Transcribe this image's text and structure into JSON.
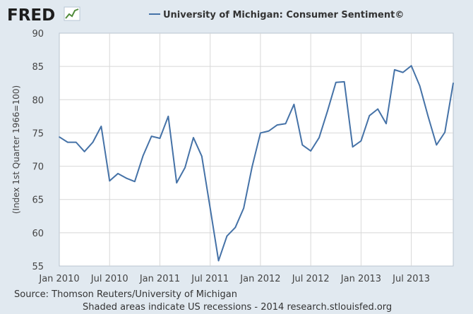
{
  "header": {
    "logo_text": "FRED",
    "legend_label": "University of Michigan: Consumer Sentiment©"
  },
  "colors": {
    "series": "#4572a7",
    "grid": "#d8d8d8",
    "plot_bg": "#ffffff",
    "page_bg": "#e1e9f0"
  },
  "chart_data": {
    "type": "line",
    "title": "",
    "xlabel": "",
    "ylabel": "(Index 1st Quarter 1966=100)",
    "ylim": [
      55,
      90
    ],
    "yticks": [
      "55",
      "60",
      "65",
      "70",
      "75",
      "80",
      "85",
      "90"
    ],
    "xticks": [
      {
        "label": "Jan 2010",
        "month_index": 0
      },
      {
        "label": "Jul 2010",
        "month_index": 6
      },
      {
        "label": "Jan 2011",
        "month_index": 12
      },
      {
        "label": "Jul 2011",
        "month_index": 18
      },
      {
        "label": "Jan 2012",
        "month_index": 24
      },
      {
        "label": "Jul 2012",
        "month_index": 30
      },
      {
        "label": "Jan 2013",
        "month_index": 36
      },
      {
        "label": "Jul 2013",
        "month_index": 42
      }
    ],
    "grid": true,
    "series": [
      {
        "name": "University of Michigan: Consumer Sentiment©",
        "start": "2010-01",
        "values": [
          74.4,
          73.6,
          73.6,
          72.2,
          73.6,
          76.0,
          67.8,
          68.9,
          68.2,
          67.7,
          71.6,
          74.5,
          74.2,
          77.5,
          67.5,
          69.8,
          74.3,
          71.5,
          63.7,
          55.8,
          59.5,
          60.8,
          63.7,
          69.9,
          75.0,
          75.3,
          76.2,
          76.4,
          79.3,
          73.2,
          72.3,
          74.3,
          78.3,
          82.6,
          82.7,
          72.9,
          73.8,
          77.6,
          78.6,
          76.4,
          84.5,
          84.1,
          85.1,
          82.1,
          77.5,
          73.2,
          75.1,
          82.5
        ]
      }
    ]
  },
  "footer": {
    "source": "Source: Thomson Reuters/University of Michigan",
    "note": "Shaded areas indicate US recessions - 2014 research.stlouisfed.org"
  }
}
